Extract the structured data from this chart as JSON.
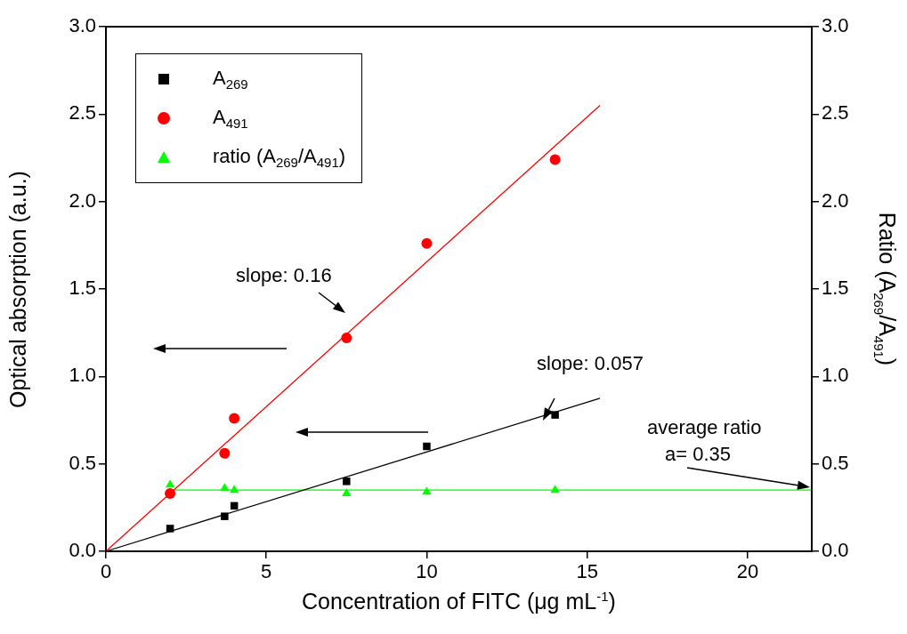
{
  "chart_data": {
    "type": "scatter",
    "xlabel": "Concentration of FITC (μg mL$^{-1}$)",
    "ylabel": "Optical absorption (a.u.)",
    "y2label": "Ratio (A$_{269}$/A$_{491}$)",
    "xlim": [
      0,
      22
    ],
    "xticks": [
      0,
      5,
      10,
      15,
      20
    ],
    "ylim": [
      0,
      3
    ],
    "yticks": [
      {
        "value": 0,
        "label": "0.0"
      },
      {
        "value": 0.5,
        "label": "0.5"
      },
      {
        "value": 1,
        "label": "1.0"
      },
      {
        "value": 1.5,
        "label": "1.5"
      },
      {
        "value": 2,
        "label": "2.0"
      },
      {
        "value": 2.5,
        "label": "2.5"
      },
      {
        "value": 3,
        "label": "3.0"
      }
    ],
    "y2lim": [
      0,
      3
    ],
    "y2ticks": [
      {
        "value": 0,
        "label": "0.0"
      },
      {
        "value": 0.5,
        "label": "0.5"
      },
      {
        "value": 1,
        "label": "1.0"
      },
      {
        "value": 1.5,
        "label": "1.5"
      },
      {
        "value": 2,
        "label": "2.0"
      },
      {
        "value": 2.5,
        "label": "2.5"
      },
      {
        "value": 3,
        "label": "3.0"
      }
    ],
    "grid": false,
    "legend": "top left",
    "series": [
      {
        "name": "A$_{269}$",
        "type": "scatter",
        "marker": "square",
        "color": "#000000",
        "x": [
          2,
          3.7,
          4,
          7.5,
          10,
          14
        ],
        "values": [
          0.13,
          0.2,
          0.26,
          0.4,
          0.6,
          0.78
        ]
      },
      {
        "name": "A$_{491}$",
        "type": "scatter",
        "marker": "circle",
        "color": "#ff0000",
        "x": [
          2,
          3.7,
          4,
          7.5,
          10,
          14
        ],
        "values": [
          0.33,
          0.56,
          0.76,
          1.22,
          1.76,
          2.24
        ]
      },
      {
        "name": "ratio (A$_{269}$/A$_{491}$)",
        "type": "scatter",
        "marker": "triangle",
        "color": "#00ff00",
        "axis": "y2",
        "x": [
          2,
          3.7,
          4,
          7.5,
          10,
          14
        ],
        "values": [
          0.38,
          0.36,
          0.35,
          0.33,
          0.34,
          0.35
        ]
      },
      {
        "type": "line",
        "marker": "none",
        "color": "#ff0000",
        "x": [
          0,
          15.4
        ],
        "values": [
          0,
          2.55
        ]
      },
      {
        "type": "line",
        "marker": "none",
        "color": "#000000",
        "x": [
          0,
          15.4
        ],
        "values": [
          0,
          0.875
        ]
      },
      {
        "type": "line",
        "marker": "none",
        "color": "#00ff00",
        "axis": "y2",
        "x": [
          2,
          22
        ],
        "values": [
          0.35,
          0.35
        ]
      }
    ],
    "annotations": [
      "slope: 0.16",
      "slope: 0.057",
      "average ratio",
      "a= 0.35"
    ]
  }
}
